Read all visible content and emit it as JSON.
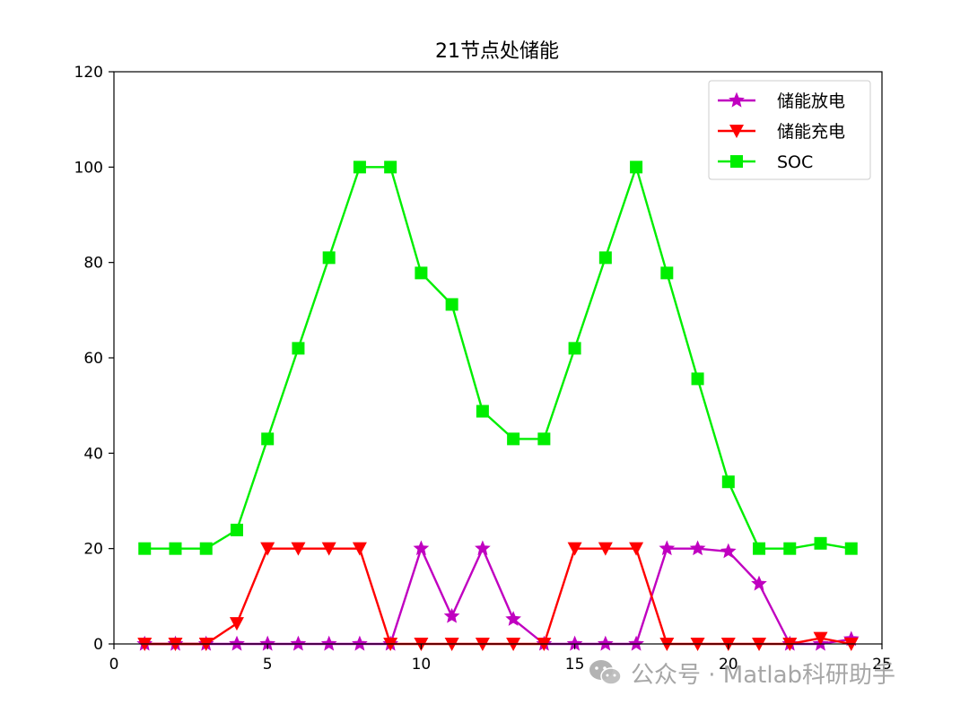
{
  "chart_data": {
    "type": "line",
    "title": "21节点处储能",
    "xlim": [
      0,
      25
    ],
    "ylim": [
      0,
      120
    ],
    "xticks": [
      "0",
      "5",
      "10",
      "15",
      "20",
      "25"
    ],
    "yticks": [
      "0",
      "20",
      "40",
      "60",
      "80",
      "100",
      "120"
    ],
    "grid": false,
    "legend_position": "top-right",
    "x": [
      1,
      2,
      3,
      4,
      5,
      6,
      7,
      8,
      9,
      10,
      11,
      12,
      13,
      14,
      15,
      16,
      17,
      18,
      19,
      20,
      21,
      22,
      23,
      24
    ],
    "series": [
      {
        "name": "储能放电",
        "color": "#c000c0",
        "marker": "star",
        "values": [
          0,
          0,
          0,
          0,
          0,
          0,
          0,
          0,
          0,
          20,
          5.8,
          20,
          5.2,
          0,
          0,
          0,
          0,
          20,
          20,
          19.4,
          12.6,
          0,
          0,
          1
        ]
      },
      {
        "name": "储能充电",
        "color": "#ff0000",
        "marker": "triangle-down",
        "values": [
          0,
          0,
          0,
          4.3,
          20,
          20,
          20,
          20,
          0,
          0,
          0,
          0,
          0,
          0,
          20,
          20,
          20,
          0,
          0,
          0,
          0,
          0,
          1.2,
          0
        ]
      },
      {
        "name": "SOC",
        "color": "#00ee00",
        "marker": "square",
        "values": [
          20,
          20,
          20,
          23.9,
          43,
          62,
          81,
          100,
          100,
          77.8,
          71.2,
          48.8,
          43,
          43,
          62,
          81,
          100,
          77.8,
          55.6,
          34,
          20,
          20,
          21.1,
          20
        ]
      }
    ]
  },
  "watermark": {
    "icon": "wechat-icon",
    "text": "公众号 · Matlab科研助手"
  }
}
